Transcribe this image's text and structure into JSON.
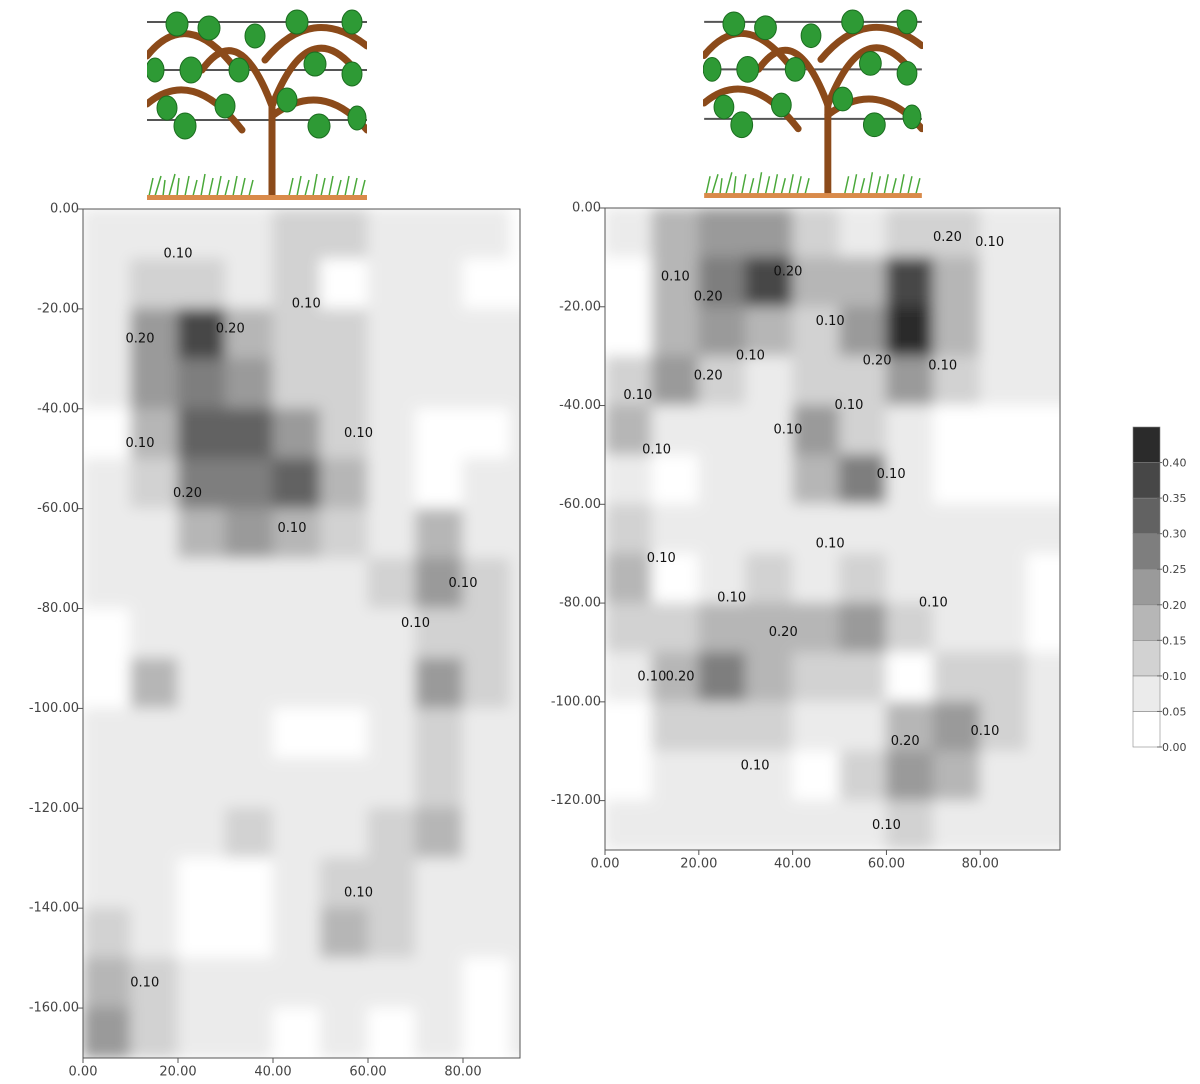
{
  "chart_data": [
    {
      "type": "contour",
      "xlim": [
        0,
        92
      ],
      "ylim": [
        -170,
        0
      ],
      "xticks": [
        {
          "value": 0,
          "label": "0.00"
        },
        {
          "value": 20,
          "label": "20.00"
        },
        {
          "value": 40,
          "label": "40.00"
        },
        {
          "value": 60,
          "label": "60.00"
        },
        {
          "value": 80,
          "label": "80.00"
        }
      ],
      "yticks": [
        {
          "value": 0,
          "label": "0.00"
        },
        {
          "value": -20,
          "label": "-20.00"
        },
        {
          "value": -40,
          "label": "-40.00"
        },
        {
          "value": -60,
          "label": "-60.00"
        },
        {
          "value": -80,
          "label": "-80.00"
        },
        {
          "value": -100,
          "label": "-100.00"
        },
        {
          "value": -120,
          "label": "-120.00"
        },
        {
          "value": -140,
          "label": "-140.00"
        },
        {
          "value": -160,
          "label": "-160.00"
        }
      ],
      "x": [
        5,
        15,
        25,
        35,
        45,
        55,
        65,
        75,
        85,
        95
      ],
      "y": [
        -5,
        -15,
        -25,
        -35,
        -45,
        -55,
        -65,
        -75,
        -85,
        -95,
        -105,
        -115,
        -125,
        -135,
        -145,
        -155,
        -165
      ],
      "z": [
        [
          0.07,
          0.07,
          0.07,
          0.07,
          0.12,
          0.12,
          0.07,
          0.07,
          0.07,
          0.02
        ],
        [
          0.07,
          0.12,
          0.12,
          0.07,
          0.12,
          0.02,
          0.07,
          0.07,
          0.02,
          0.02
        ],
        [
          0.07,
          0.22,
          0.38,
          0.17,
          0.12,
          0.12,
          0.07,
          0.07,
          0.07,
          0.07
        ],
        [
          0.07,
          0.22,
          0.27,
          0.22,
          0.12,
          0.12,
          0.07,
          0.07,
          0.07,
          0.07
        ],
        [
          0.02,
          0.17,
          0.32,
          0.32,
          0.22,
          0.12,
          0.07,
          0.02,
          0.02,
          0.07
        ],
        [
          0.07,
          0.12,
          0.27,
          0.27,
          0.32,
          0.17,
          0.07,
          0.02,
          0.07,
          0.07
        ],
        [
          0.07,
          0.07,
          0.17,
          0.22,
          0.17,
          0.12,
          0.07,
          0.17,
          0.07,
          0.07
        ],
        [
          0.07,
          0.07,
          0.07,
          0.07,
          0.07,
          0.07,
          0.12,
          0.22,
          0.12,
          0.07
        ],
        [
          0.02,
          0.07,
          0.07,
          0.07,
          0.07,
          0.07,
          0.07,
          0.12,
          0.12,
          0.07
        ],
        [
          0.02,
          0.17,
          0.07,
          0.07,
          0.07,
          0.07,
          0.07,
          0.22,
          0.12,
          0.07
        ],
        [
          0.07,
          0.07,
          0.07,
          0.07,
          0.02,
          0.02,
          0.07,
          0.12,
          0.07,
          0.07
        ],
        [
          0.07,
          0.07,
          0.07,
          0.07,
          0.07,
          0.07,
          0.07,
          0.12,
          0.07,
          0.07
        ],
        [
          0.07,
          0.07,
          0.07,
          0.12,
          0.07,
          0.07,
          0.12,
          0.17,
          0.07,
          0.07
        ],
        [
          0.07,
          0.07,
          0.02,
          0.02,
          0.07,
          0.12,
          0.12,
          0.07,
          0.07,
          0.07
        ],
        [
          0.12,
          0.07,
          0.02,
          0.02,
          0.07,
          0.17,
          0.12,
          0.07,
          0.07,
          0.07
        ],
        [
          0.17,
          0.12,
          0.07,
          0.07,
          0.07,
          0.07,
          0.07,
          0.07,
          0.02,
          0.07
        ],
        [
          0.22,
          0.12,
          0.07,
          0.07,
          0.02,
          0.07,
          0.02,
          0.07,
          0.02,
          0.07
        ]
      ],
      "annotations": [
        {
          "x": 20,
          "y": -9,
          "text": "0.10"
        },
        {
          "x": 47,
          "y": -19,
          "text": "0.10"
        },
        {
          "x": 12,
          "y": -26,
          "text": "0.20"
        },
        {
          "x": 31,
          "y": -24,
          "text": "0.20"
        },
        {
          "x": 12,
          "y": -47,
          "text": "0.10"
        },
        {
          "x": 58,
          "y": -45,
          "text": "0.10"
        },
        {
          "x": 22,
          "y": -57,
          "text": "0.20"
        },
        {
          "x": 44,
          "y": -64,
          "text": "0.10"
        },
        {
          "x": 80,
          "y": -75,
          "text": "0.10"
        },
        {
          "x": 70,
          "y": -83,
          "text": "0.10"
        },
        {
          "x": 58,
          "y": -137,
          "text": "0.10"
        },
        {
          "x": 13,
          "y": -155,
          "text": "0.10"
        }
      ]
    },
    {
      "type": "contour",
      "xlim": [
        0,
        97
      ],
      "ylim": [
        -130,
        0
      ],
      "xticks": [
        {
          "value": 0,
          "label": "0.00"
        },
        {
          "value": 20,
          "label": "20.00"
        },
        {
          "value": 40,
          "label": "40.00"
        },
        {
          "value": 60,
          "label": "60.00"
        },
        {
          "value": 80,
          "label": "80.00"
        }
      ],
      "yticks": [
        {
          "value": 0,
          "label": "0.00"
        },
        {
          "value": -20,
          "label": "-20.00"
        },
        {
          "value": -40,
          "label": "-40.00"
        },
        {
          "value": -60,
          "label": "-60.00"
        },
        {
          "value": -80,
          "label": "-80.00"
        },
        {
          "value": -100,
          "label": "-100.00"
        },
        {
          "value": -120,
          "label": "-120.00"
        }
      ],
      "x": [
        5,
        15,
        25,
        35,
        45,
        55,
        65,
        75,
        85,
        95
      ],
      "y": [
        -5,
        -15,
        -25,
        -35,
        -45,
        -55,
        -65,
        -75,
        -85,
        -95,
        -105,
        -115,
        -125
      ],
      "z": [
        [
          0.07,
          0.17,
          0.22,
          0.22,
          0.12,
          0.07,
          0.12,
          0.12,
          0.07,
          0.07
        ],
        [
          0.02,
          0.17,
          0.27,
          0.37,
          0.17,
          0.17,
          0.37,
          0.17,
          0.07,
          0.07
        ],
        [
          0.02,
          0.17,
          0.22,
          0.17,
          0.12,
          0.22,
          0.42,
          0.17,
          0.07,
          0.07
        ],
        [
          0.12,
          0.22,
          0.12,
          0.07,
          0.12,
          0.12,
          0.22,
          0.12,
          0.07,
          0.07
        ],
        [
          0.17,
          0.07,
          0.07,
          0.07,
          0.22,
          0.12,
          0.07,
          0.02,
          0.02,
          0.02
        ],
        [
          0.07,
          0.02,
          0.07,
          0.07,
          0.17,
          0.27,
          0.07,
          0.02,
          0.02,
          0.02
        ],
        [
          0.12,
          0.07,
          0.07,
          0.07,
          0.07,
          0.07,
          0.07,
          0.07,
          0.07,
          0.07
        ],
        [
          0.17,
          0.02,
          0.07,
          0.12,
          0.07,
          0.12,
          0.07,
          0.07,
          0.07,
          0.02
        ],
        [
          0.12,
          0.12,
          0.17,
          0.17,
          0.17,
          0.22,
          0.12,
          0.07,
          0.07,
          0.02
        ],
        [
          0.07,
          0.17,
          0.27,
          0.17,
          0.12,
          0.12,
          0.02,
          0.12,
          0.12,
          0.07
        ],
        [
          0.02,
          0.12,
          0.12,
          0.12,
          0.07,
          0.07,
          0.17,
          0.22,
          0.12,
          0.07
        ],
        [
          0.02,
          0.07,
          0.07,
          0.07,
          0.02,
          0.12,
          0.22,
          0.17,
          0.07,
          0.07
        ],
        [
          0.07,
          0.07,
          0.07,
          0.07,
          0.07,
          0.07,
          0.12,
          0.07,
          0.07,
          0.07
        ]
      ],
      "annotations": [
        {
          "x": 73,
          "y": -6,
          "text": "0.20"
        },
        {
          "x": 82,
          "y": -7,
          "text": "0.10"
        },
        {
          "x": 15,
          "y": -14,
          "text": "0.10"
        },
        {
          "x": 22,
          "y": -18,
          "text": "0.20"
        },
        {
          "x": 39,
          "y": -13,
          "text": "0.20"
        },
        {
          "x": 48,
          "y": -23,
          "text": "0.10"
        },
        {
          "x": 22,
          "y": -34,
          "text": "0.20"
        },
        {
          "x": 31,
          "y": -30,
          "text": "0.10"
        },
        {
          "x": 58,
          "y": -31,
          "text": "0.20"
        },
        {
          "x": 72,
          "y": -32,
          "text": "0.10"
        },
        {
          "x": 7,
          "y": -38,
          "text": "0.10"
        },
        {
          "x": 52,
          "y": -40,
          "text": "0.10"
        },
        {
          "x": 39,
          "y": -45,
          "text": "0.10"
        },
        {
          "x": 11,
          "y": -49,
          "text": "0.10"
        },
        {
          "x": 61,
          "y": -54,
          "text": "0.10"
        },
        {
          "x": 48,
          "y": -68,
          "text": "0.10"
        },
        {
          "x": 12,
          "y": -71,
          "text": "0.10"
        },
        {
          "x": 27,
          "y": -79,
          "text": "0.10"
        },
        {
          "x": 38,
          "y": -86,
          "text": "0.20"
        },
        {
          "x": 70,
          "y": -80,
          "text": "0.10"
        },
        {
          "x": 10,
          "y": -95,
          "text": "0.10"
        },
        {
          "x": 16,
          "y": -95,
          "text": "0.20"
        },
        {
          "x": 64,
          "y": -108,
          "text": "0.20"
        },
        {
          "x": 81,
          "y": -106,
          "text": "0.10"
        },
        {
          "x": 32,
          "y": -113,
          "text": "0.10"
        },
        {
          "x": 60,
          "y": -125,
          "text": "0.10"
        }
      ]
    },
    {
      "type": "colorbar",
      "ylim": [
        0,
        0.45
      ],
      "bounds": [
        0,
        0.05,
        0.1,
        0.15,
        0.2,
        0.25,
        0.3,
        0.35,
        0.4,
        0.45
      ],
      "colors": [
        "#ffffff",
        "#ebebeb",
        "#d2d2d2",
        "#b6b6b6",
        "#9a9a9a",
        "#7e7e7e",
        "#626262",
        "#474747",
        "#2b2b2b"
      ],
      "yticks": [
        {
          "value": 0,
          "label": "0.00"
        },
        {
          "value": 0.05,
          "label": "0.05"
        },
        {
          "value": 0.1,
          "label": "0.10"
        },
        {
          "value": 0.15,
          "label": "0.15"
        },
        {
          "value": 0.2,
          "label": "0.20"
        },
        {
          "value": 0.25,
          "label": "0.25"
        },
        {
          "value": 0.3,
          "label": "0.30"
        },
        {
          "value": 0.35,
          "label": "0.35"
        },
        {
          "value": 0.4,
          "label": "0.40"
        }
      ]
    }
  ]
}
